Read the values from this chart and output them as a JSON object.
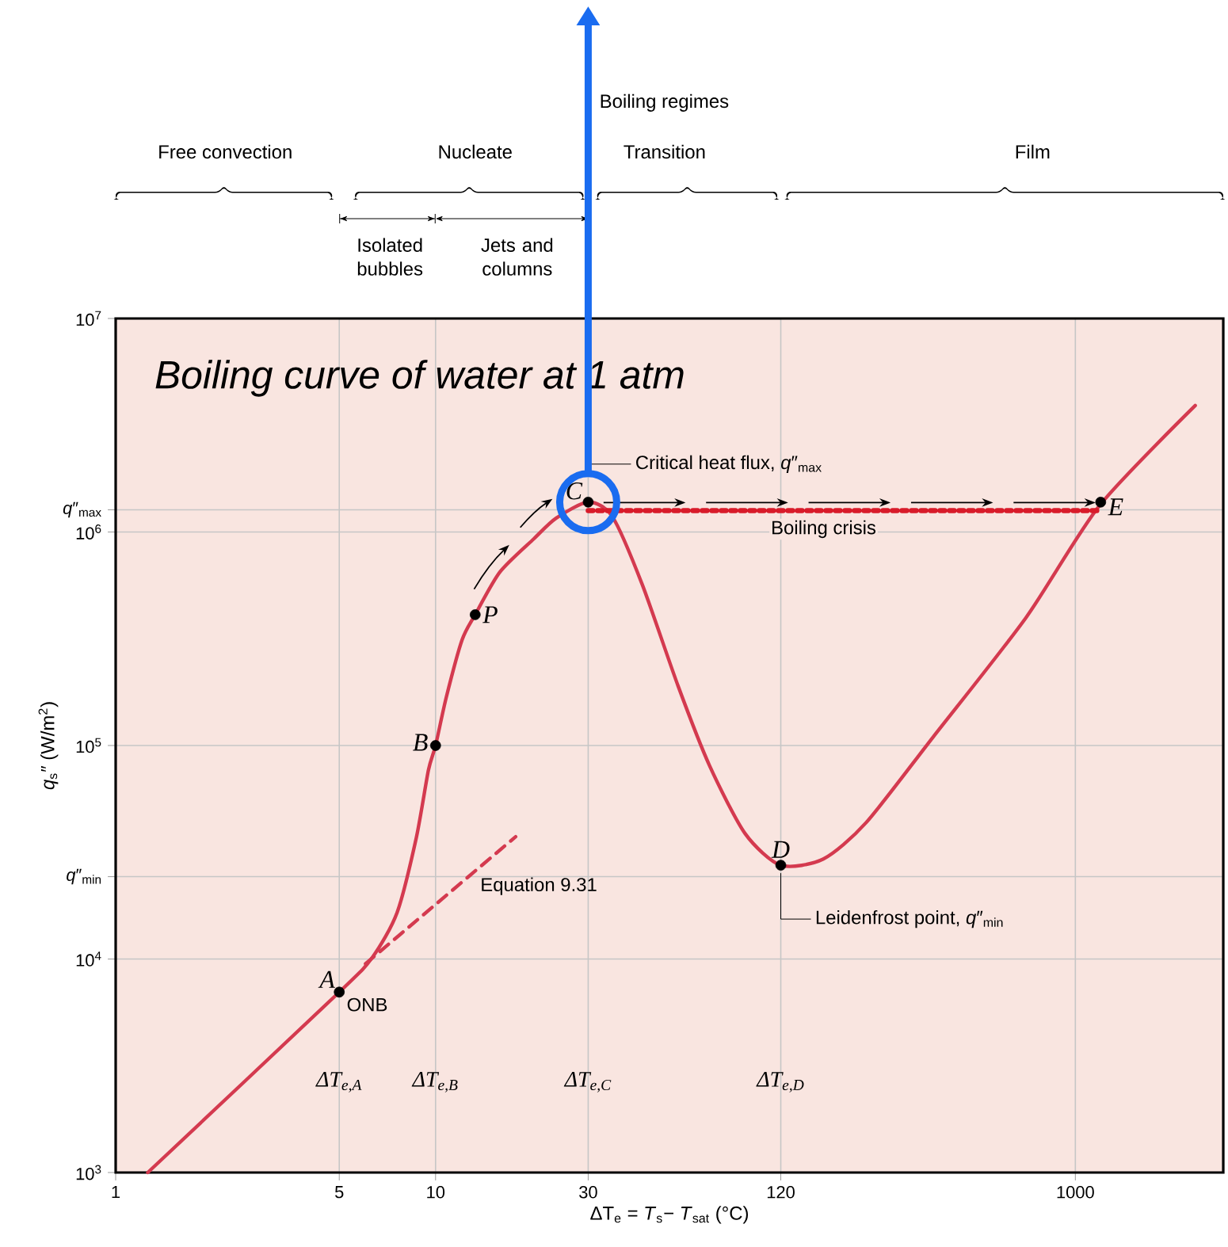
{
  "chart_data": {
    "type": "line",
    "title": "Boiling curve of water at 1 atm",
    "xlabel": "ΔT$_{e}$ = *T*$_{s}$− *T*$_{sat}$ (°C)",
    "ylabel": "*q*$_{s}$″ (W/m$^{2}$)",
    "log": "xy",
    "grid": true,
    "xlim": [
      1,
      2900
    ],
    "ylim": [
      1000,
      10000000
    ],
    "xticks": [
      1,
      5,
      10,
      30,
      120,
      1000
    ],
    "yticks": [
      {
        "value": 1000,
        "label": "10$^{3}$"
      },
      {
        "value": 10000,
        "label": "10$^{4}$"
      },
      {
        "value": 100000,
        "label": "10$^{5}$"
      },
      {
        "value": 1000000,
        "label": "10$^{6}$"
      },
      {
        "value": 10000000,
        "label": "10$^{7}$"
      },
      {
        "value": 1270000,
        "label": "*q*″$_{max}$"
      },
      {
        "value": 24300,
        "label": "*q*″$_{min}$"
      }
    ],
    "series": [
      {
        "color": "#d43a4f",
        "line_style": "solid",
        "x": [
          1.26,
          5,
          6.35,
          7.58,
          8.7,
          9.5,
          10,
          10.8,
          12.1,
          13.3,
          15.9,
          20.3,
          23.8,
          30,
          35.7,
          44.3,
          57.3,
          71.8,
          92.8,
          120,
          163,
          222,
          360,
          700,
          1190,
          2370
        ],
        "values": [
          1000,
          7000,
          10200,
          16500,
          36800,
          76700,
          100000,
          168000,
          312000,
          410000,
          650000,
          930000,
          1160000,
          1380000,
          1180000,
          566000,
          190000,
          80700,
          38700,
          27500,
          29400,
          43600,
          110000,
          396000,
          1330000,
          3910000
        ]
      },
      {
        "color": "#d43a4f",
        "line_style": "dashed",
        "x": [
          6.04,
          17.8
        ],
        "values": [
          9500,
          37400
        ]
      },
      {
        "color": "#d81b2a",
        "line_style": "dotted",
        "x": [
          30,
          1200
        ],
        "values": [
          1260000,
          1260000
        ]
      },
      {
        "type": "scatter",
        "color": "#000000",
        "marker": "circle",
        "x": [
          5,
          10,
          13.3,
          30,
          120,
          1200
        ],
        "values": [
          7000,
          100000,
          410000,
          1380000,
          27500,
          1380000
        ]
      }
    ],
    "annotations": [
      "Boiling regimes",
      "Free convection",
      "Nucleate",
      "Transition",
      "Film",
      "Isolated bubbles",
      "Jets and columns",
      {
        "text": "A",
        "x": 5,
        "y": 7000
      },
      {
        "text": "B",
        "x": 10,
        "y": 100000
      },
      {
        "text": "P",
        "x": 13.3,
        "y": 410000
      },
      {
        "text": "C",
        "x": 30,
        "y": 1380000
      },
      {
        "text": "D",
        "x": 120,
        "y": 27500
      },
      {
        "text": "E",
        "x": 1200,
        "y": 1380000
      },
      {
        "text": "ONB",
        "x": 5,
        "y": 7000
      },
      {
        "text": "Equation 9.31",
        "x": 17.8,
        "y": 37400
      },
      {
        "text": "Critical heat flux, *q*″$_{max}$",
        "x": 30,
        "y": 1380000
      },
      {
        "text": "Boiling crisis",
        "x": 120,
        "y": 1260000
      },
      {
        "text": "Leidenfrost point, *q*″$_{min}$",
        "x": 120,
        "y": 27500
      },
      "ΔT$_{e,A}$",
      "ΔT$_{e,B}$",
      "ΔT$_{e,C}$",
      "ΔT$_{e,D}$"
    ]
  }
}
